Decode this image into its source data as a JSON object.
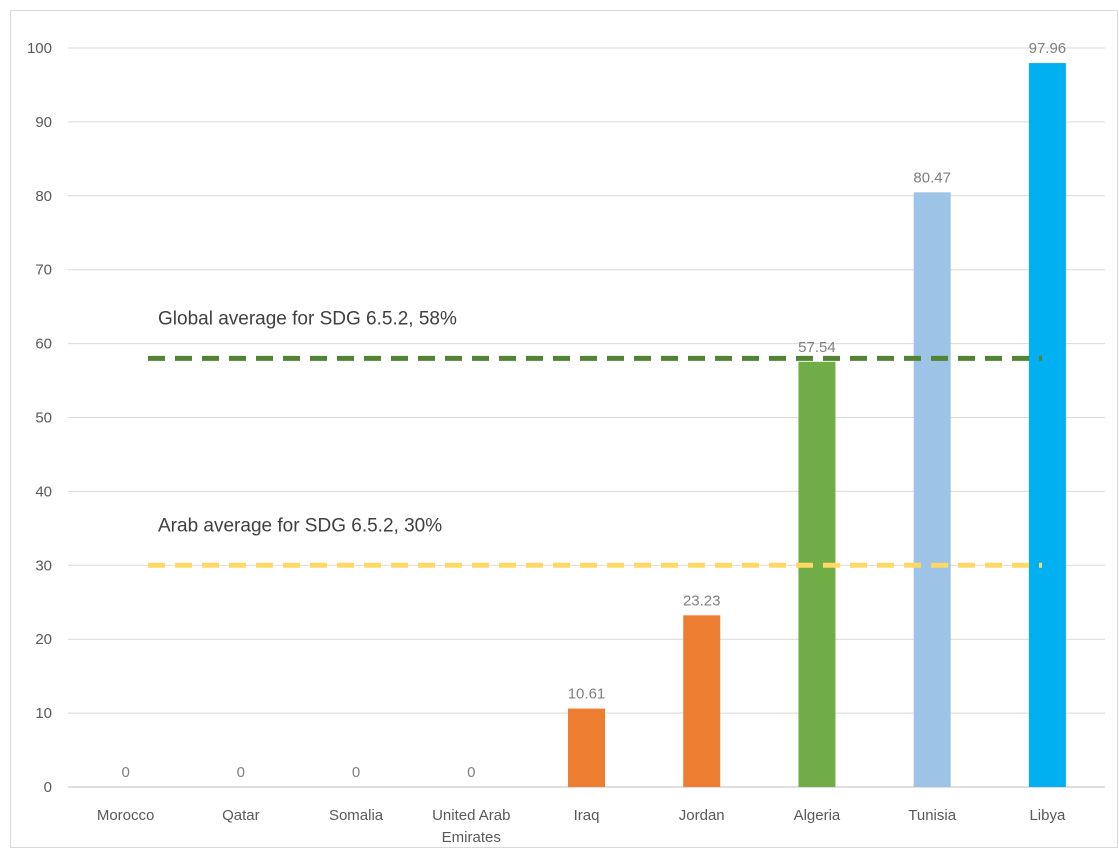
{
  "chart_data": {
    "type": "bar",
    "categories": [
      "Morocco",
      "Qatar",
      "Somalia",
      "United Arab Emirates",
      "Iraq",
      "Jordan",
      "Algeria",
      "Tunisia",
      "Libya"
    ],
    "category_lines": [
      [
        "Morocco"
      ],
      [
        "Qatar"
      ],
      [
        "Somalia"
      ],
      [
        "United Arab",
        "Emirates"
      ],
      [
        "Iraq"
      ],
      [
        "Jordan"
      ],
      [
        "Algeria"
      ],
      [
        "Tunisia"
      ],
      [
        "Libya"
      ]
    ],
    "values": [
      0,
      0,
      0,
      0,
      10.61,
      23.23,
      57.54,
      80.47,
      97.96
    ],
    "data_labels": [
      "0",
      "0",
      "0",
      "0",
      "10.61",
      "23.23",
      "57.54",
      "80.47",
      "97.96"
    ],
    "bar_colors": [
      "#ed7d31",
      "#ed7d31",
      "#ed7d31",
      "#ed7d31",
      "#ed7d31",
      "#ed7d31",
      "#70ad47",
      "#9dc3e6",
      "#00b0f0"
    ],
    "ylim": [
      0,
      100
    ],
    "yticks": [
      0,
      10,
      20,
      30,
      40,
      50,
      60,
      70,
      80,
      90,
      100
    ],
    "grid": true,
    "reference_lines": [
      {
        "value": 58,
        "label": "Global average for SDG 6.5.2, 58%",
        "color": "#548235"
      },
      {
        "value": 30,
        "label": "Arab average for SDG 6.5.2, 30%",
        "color": "#ffd966"
      }
    ],
    "title": "",
    "xlabel": "",
    "ylabel": ""
  }
}
